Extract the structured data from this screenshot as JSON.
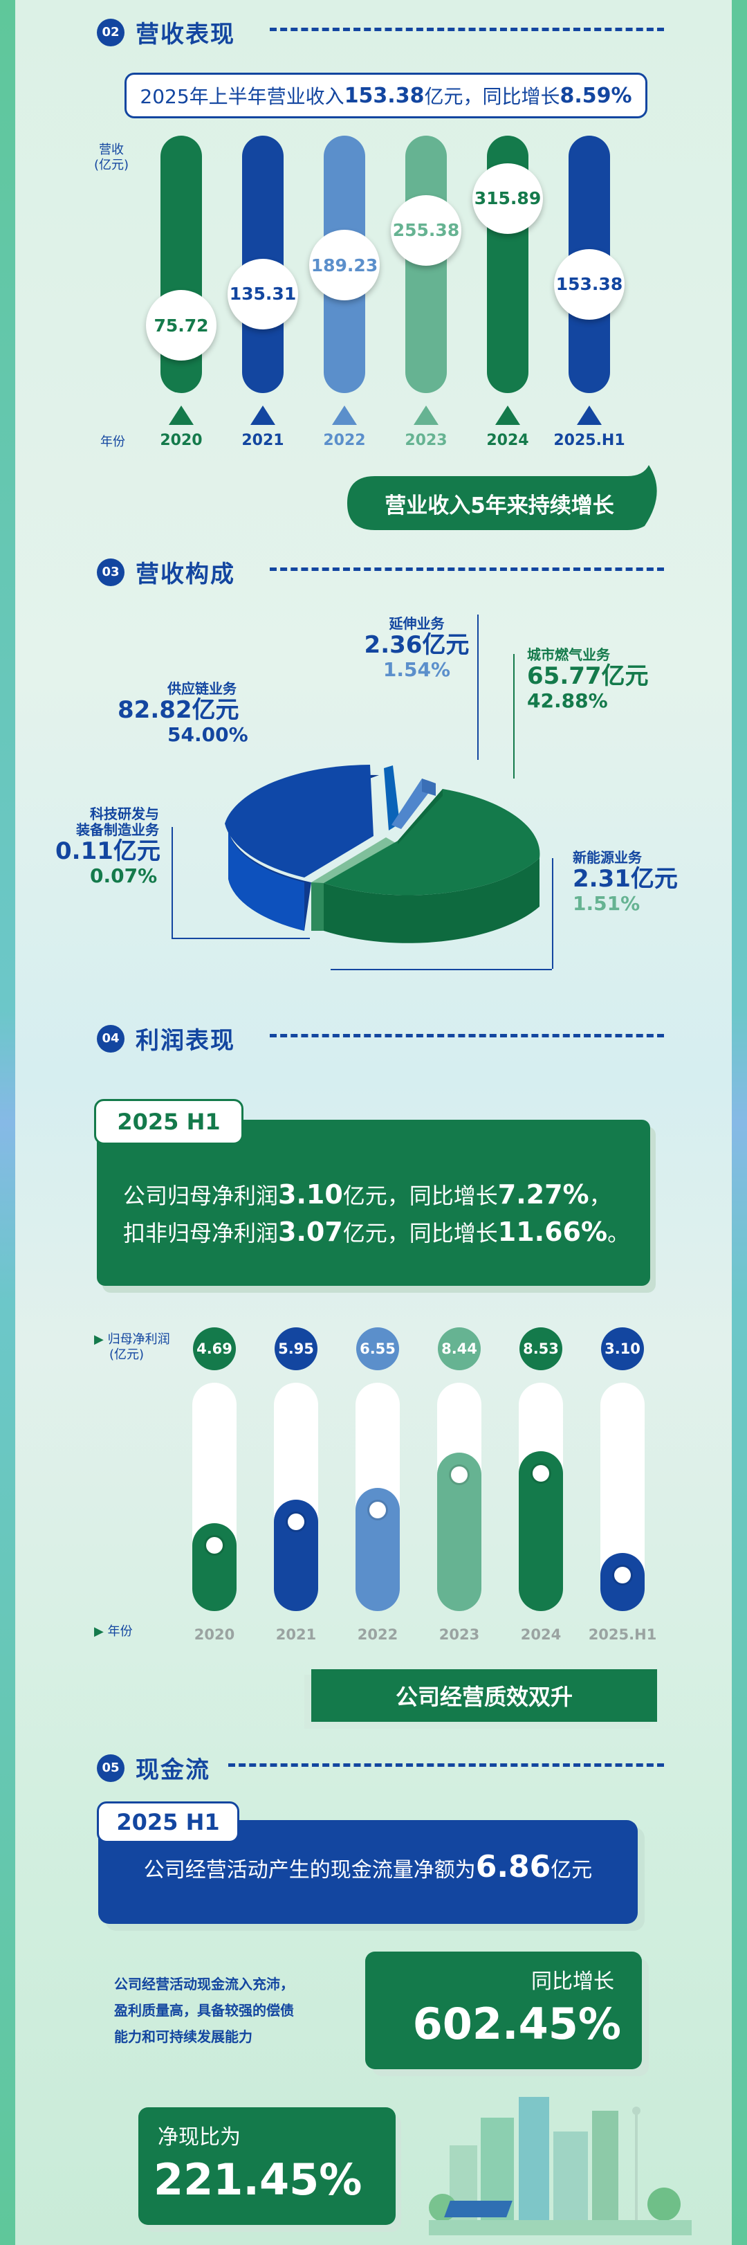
{
  "sections": {
    "revenue": {
      "num": "02",
      "title": "营收表现"
    },
    "composition": {
      "num": "03",
      "title": "营收构成"
    },
    "profit": {
      "num": "04",
      "title": "利润表现"
    },
    "cashflow": {
      "num": "05",
      "title": "现金流"
    }
  },
  "revenue": {
    "summary_prefix": "2025年上半年营业收入",
    "summary_value": "153.38",
    "summary_mid": "亿元，同比增长",
    "summary_growth": "8.59%",
    "y_unit": "营收",
    "y_unit2": "(亿元)",
    "x_unit": "年份",
    "banner": "营业收入5年来持续增长"
  },
  "profit": {
    "period": "2025 H1",
    "line1_prefix": "公司归母净利润",
    "line1_value": "3.10",
    "line1_mid": "亿元，同比增长",
    "line1_growth": "7.27%",
    "line1_end": "，",
    "line2_prefix": "扣非归母净利润",
    "line2_value": "3.07",
    "line2_mid": "亿元，同比增长",
    "line2_growth": "11.66%",
    "line2_end": "。",
    "y_unit": "归母净利润",
    "y_unit2": "(亿元)",
    "x_unit": "年份",
    "banner": "公司经营质效双升"
  },
  "cashflow": {
    "period": "2025 H1",
    "text_prefix": "公司经营活动产生的现金流量净额为",
    "text_value": "6.86",
    "text_suffix": "亿元",
    "note1": "公司经营活动现金流入充沛，",
    "note2": "盈利质量高，具备较强的偿债",
    "note3": "能力和可持续发展能力",
    "yoy_label": "同比增长",
    "yoy_value": "602.45%",
    "ratio_label": "净现比为",
    "ratio_value": "221.45%"
  },
  "colors": {
    "green": "#147a4b",
    "navy": "#1346a0",
    "light_blue": "#5b8fcb",
    "teal": "#66b392"
  },
  "chart_data": [
    {
      "type": "bar",
      "title": "",
      "xlabel": "年份",
      "ylabel": "营收(亿元)",
      "categories": [
        "2020",
        "2021",
        "2022",
        "2023",
        "2024",
        "2025.H1"
      ],
      "values": [
        75.72,
        135.31,
        189.23,
        255.38,
        315.89,
        153.38
      ],
      "labels": [
        "75.72",
        "135.31",
        "189.23",
        "255.38",
        "315.89",
        "153.38"
      ],
      "bar_colors": [
        "#147a4b",
        "#1346a0",
        "#5b8fcb",
        "#66b392",
        "#147a4b",
        "#1346a0"
      ]
    },
    {
      "type": "pie",
      "title": "",
      "slices": [
        {
          "name": "城市燃气业务",
          "value_text": "65.77亿元",
          "pct_text": "42.88%",
          "value": 65.77,
          "pct": 42.88,
          "color": "#147a4b"
        },
        {
          "name": "供应链业务",
          "value_text": "82.82亿元",
          "pct_text": "54.00%",
          "value": 82.82,
          "pct": 54.0,
          "color": "#1346a0"
        },
        {
          "name": "延伸业务",
          "value_text": "2.36亿元",
          "pct_text": "1.54%",
          "value": 2.36,
          "pct": 1.54,
          "color": "#5b8fcb"
        },
        {
          "name": "新能源业务",
          "value_text": "2.31亿元",
          "pct_text": "1.51%",
          "value": 2.31,
          "pct": 1.51,
          "color": "#66b392"
        },
        {
          "name": "科技研发与装备制造业务",
          "name_line1": "科技研发与",
          "name_line2": "装备制造业务",
          "value_text": "0.11亿元",
          "pct_text": "0.07%",
          "value": 0.11,
          "pct": 0.07,
          "color": "#147a4b"
        }
      ]
    },
    {
      "type": "bar",
      "title": "",
      "xlabel": "年份",
      "ylabel": "归母净利润(亿元)",
      "categories": [
        "2020",
        "2021",
        "2022",
        "2023",
        "2024",
        "2025.H1"
      ],
      "values": [
        4.69,
        5.95,
        6.55,
        8.44,
        8.53,
        3.1
      ],
      "labels": [
        "4.69",
        "5.95",
        "6.55",
        "8.44",
        "8.53",
        "3.10"
      ],
      "bar_colors": [
        "#147a4b",
        "#1346a0",
        "#5b8fcb",
        "#66b392",
        "#147a4b",
        "#1346a0"
      ],
      "ylim": [
        0,
        14
      ]
    }
  ]
}
